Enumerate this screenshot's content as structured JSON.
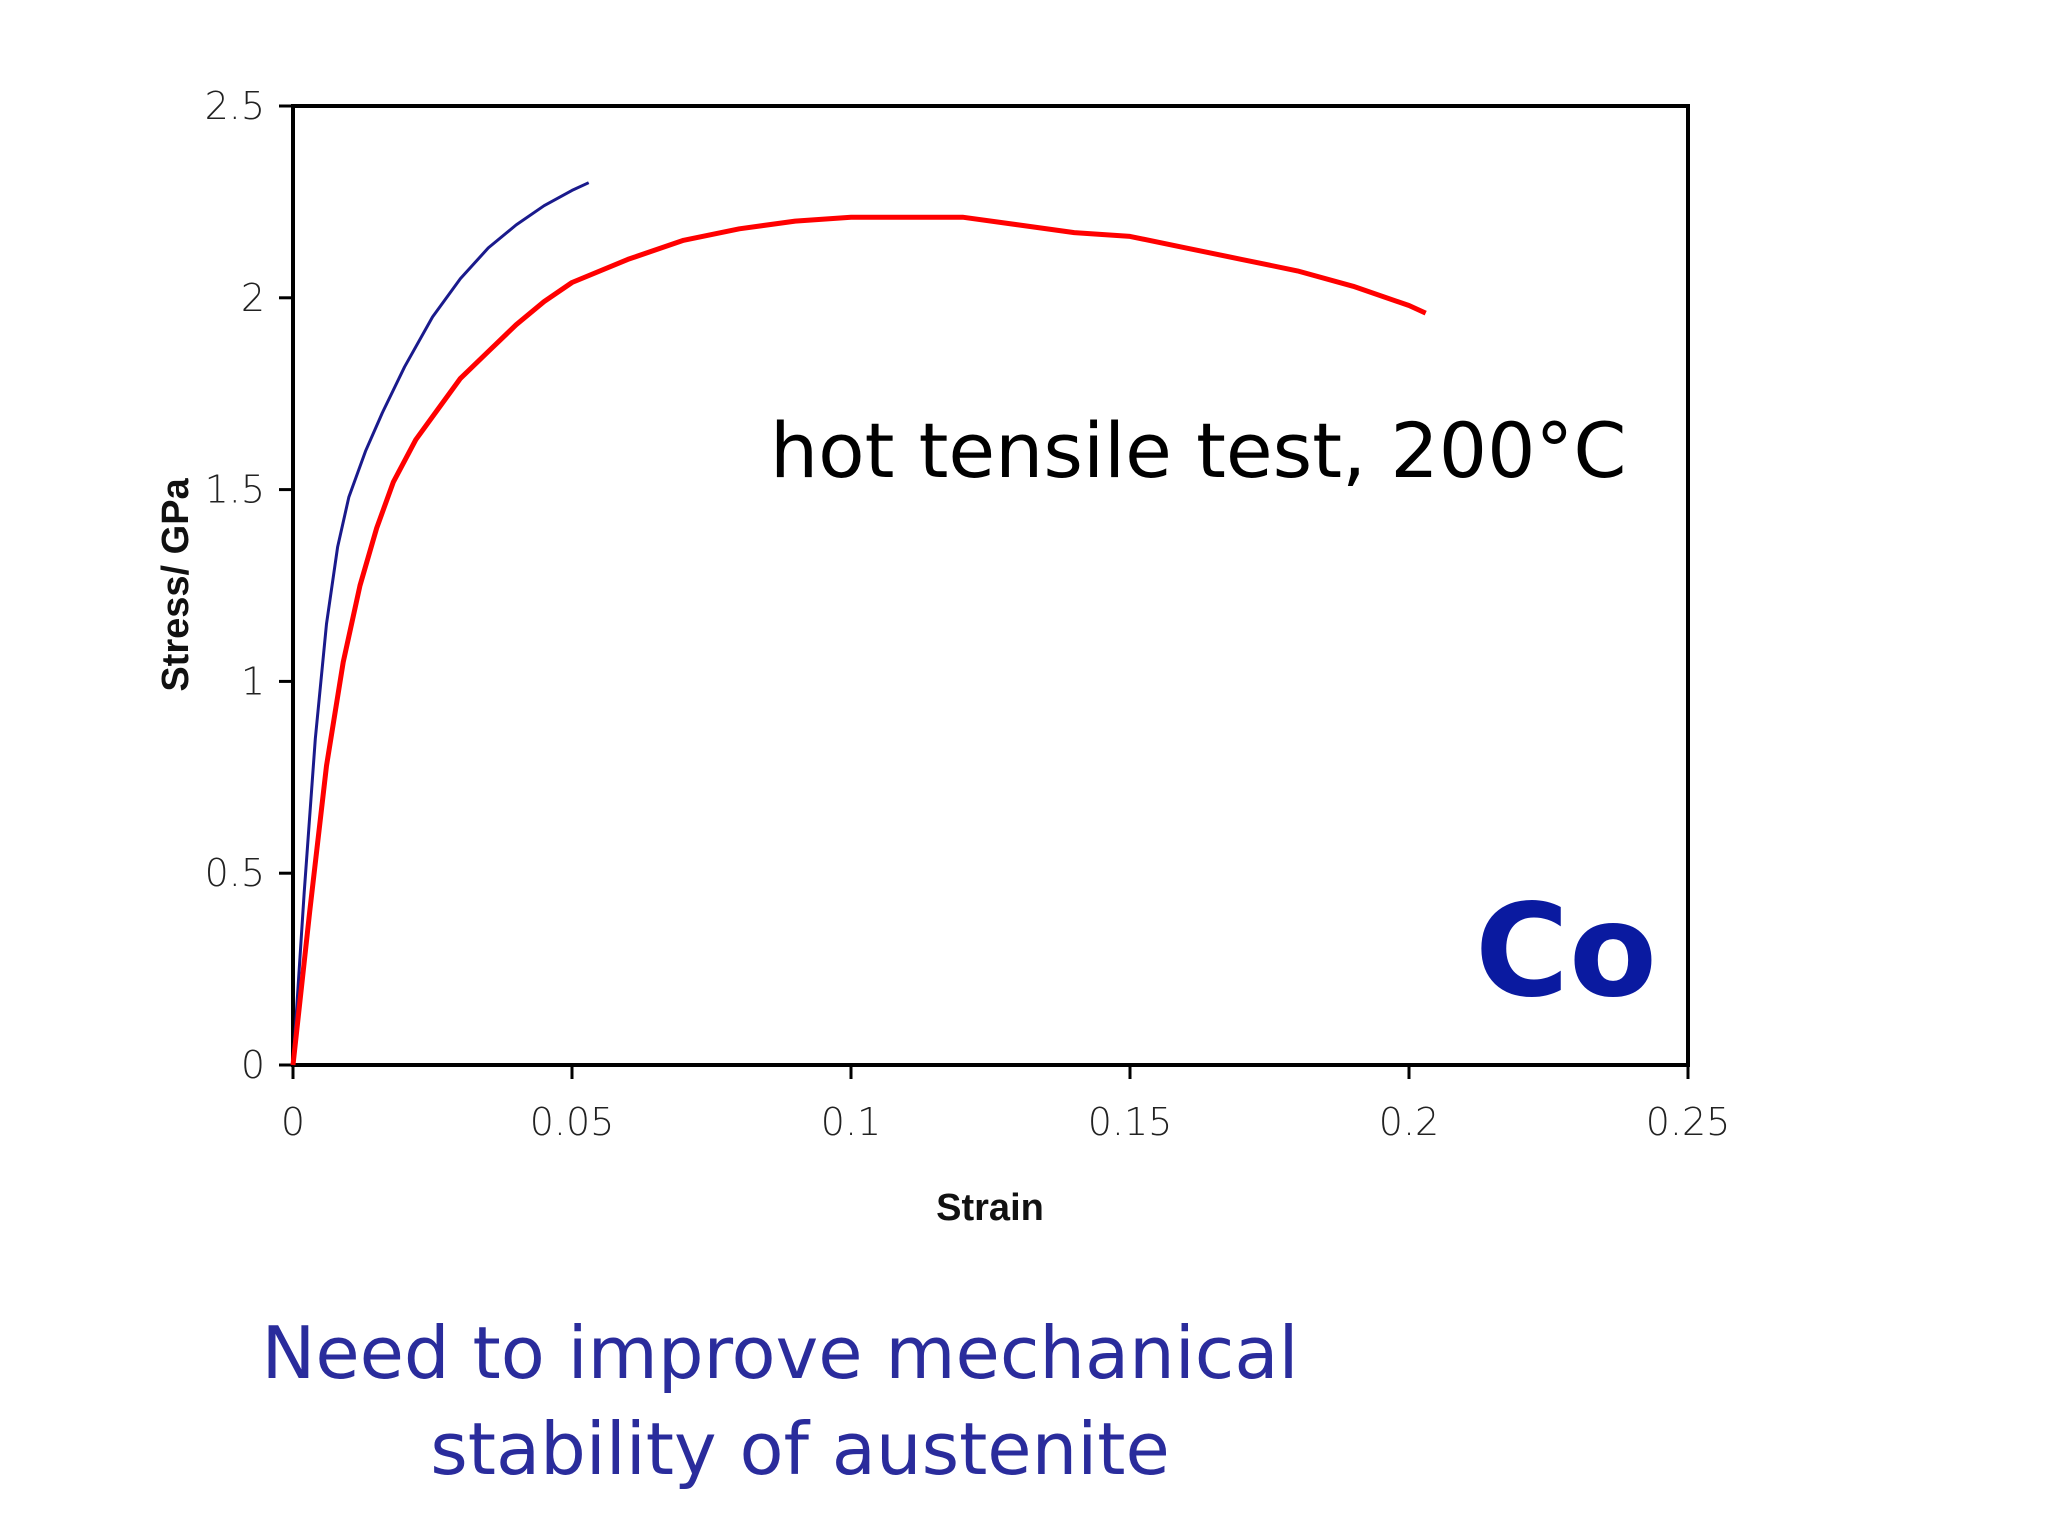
{
  "chart_data": {
    "type": "line",
    "xlabel": "Strain",
    "ylabel": "Stress/ GPa",
    "xlim": [
      0,
      0.25
    ],
    "ylim": [
      0,
      2.5
    ],
    "x_ticks": [
      "0",
      "0.05",
      "0.1",
      "0.15",
      "0.2",
      "0.25"
    ],
    "y_ticks": [
      "0",
      "0.5",
      "1",
      "1.5",
      "2",
      "2.5"
    ],
    "grid": false,
    "series": [
      {
        "color": "#1a1a8c",
        "x": [
          0,
          0.002,
          0.004,
          0.006,
          0.008,
          0.01,
          0.013,
          0.016,
          0.02,
          0.025,
          0.03,
          0.035,
          0.04,
          0.045,
          0.05,
          0.053
        ],
        "y": [
          0,
          0.45,
          0.85,
          1.15,
          1.35,
          1.48,
          1.6,
          1.7,
          1.82,
          1.95,
          2.05,
          2.13,
          2.19,
          2.24,
          2.28,
          2.3
        ]
      },
      {
        "color": "#ff0000",
        "x": [
          0,
          0.003,
          0.006,
          0.009,
          0.012,
          0.015,
          0.018,
          0.022,
          0.026,
          0.03,
          0.035,
          0.04,
          0.045,
          0.05,
          0.06,
          0.07,
          0.08,
          0.09,
          0.1,
          0.11,
          0.12,
          0.13,
          0.14,
          0.15,
          0.16,
          0.17,
          0.18,
          0.19,
          0.2,
          0.203
        ],
        "y": [
          0,
          0.4,
          0.78,
          1.05,
          1.25,
          1.4,
          1.52,
          1.63,
          1.71,
          1.79,
          1.86,
          1.93,
          1.99,
          2.04,
          2.1,
          2.15,
          2.18,
          2.2,
          2.21,
          2.21,
          2.21,
          2.19,
          2.17,
          2.16,
          2.13,
          2.1,
          2.07,
          2.03,
          1.98,
          1.96
        ]
      }
    ],
    "annotations": {
      "condition": "hot tensile test, 200°C",
      "element": "Co"
    }
  },
  "caption": {
    "line1": "Need to improve mechanical",
    "line2": "stability of  austenite"
  }
}
